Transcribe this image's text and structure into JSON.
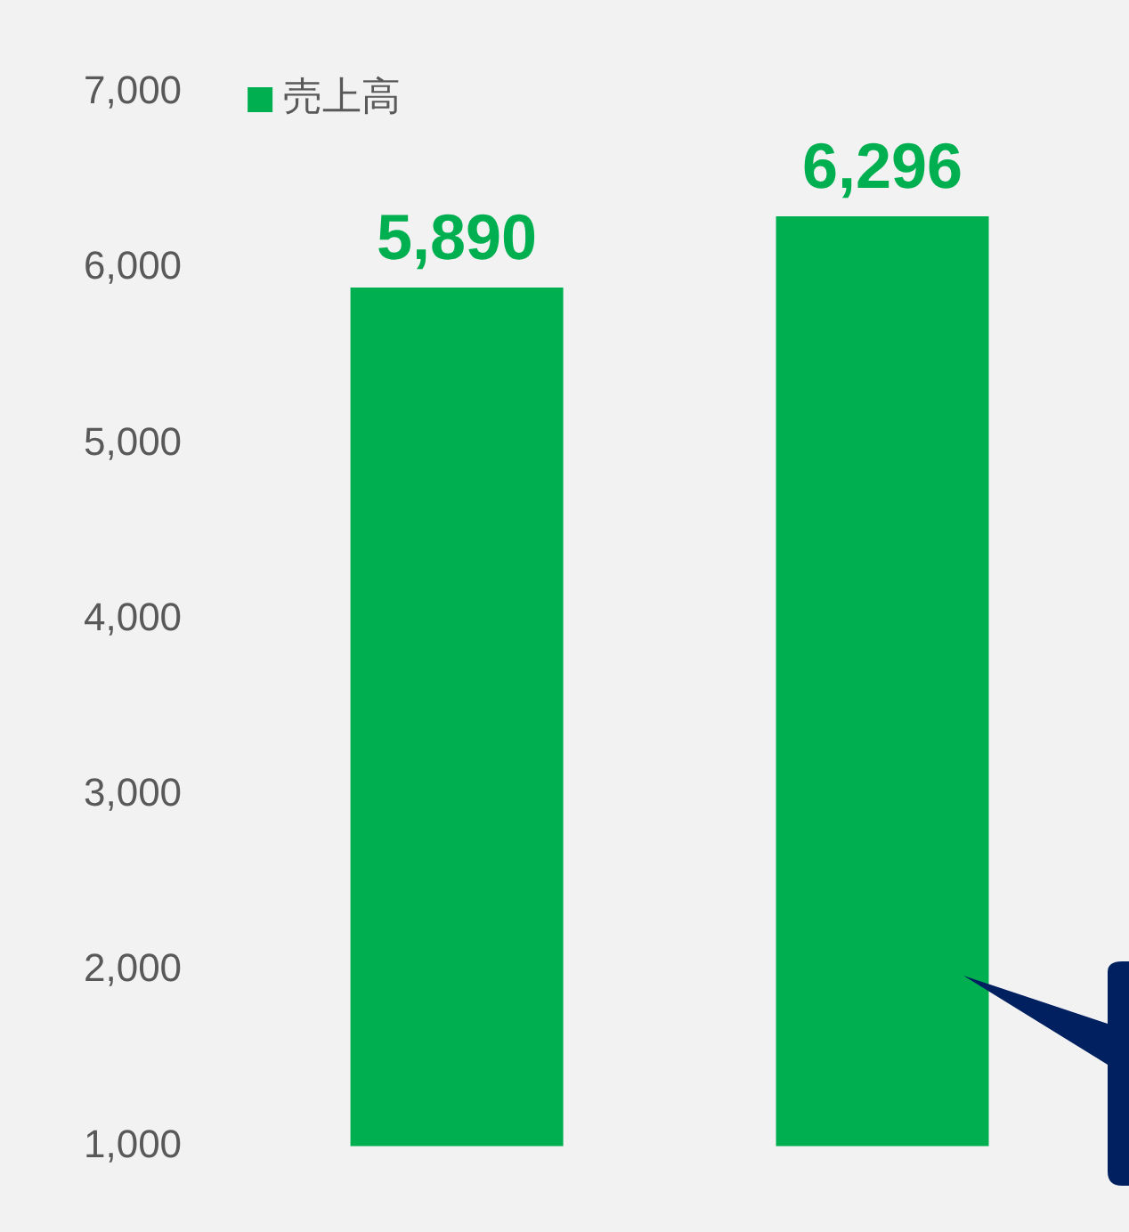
{
  "chart_data": {
    "type": "bar",
    "categories": [
      null,
      null
    ],
    "series": [
      {
        "name": "売上高",
        "color": "#00b050",
        "values": [
          5890,
          6296
        ]
      }
    ],
    "ylim": [
      1000,
      7000
    ],
    "yticks": [
      {
        "value": 1000,
        "label": "1,000"
      },
      {
        "value": 2000,
        "label": "2,000"
      },
      {
        "value": 3000,
        "label": "3,000"
      },
      {
        "value": 4000,
        "label": "4,000"
      },
      {
        "value": 5000,
        "label": "5,000"
      },
      {
        "value": 6000,
        "label": "6,000"
      },
      {
        "value": 7000,
        "label": "7,000"
      }
    ],
    "value_labels": [
      "5,890",
      "6,296"
    ],
    "legend": "top left",
    "grid": false
  }
}
